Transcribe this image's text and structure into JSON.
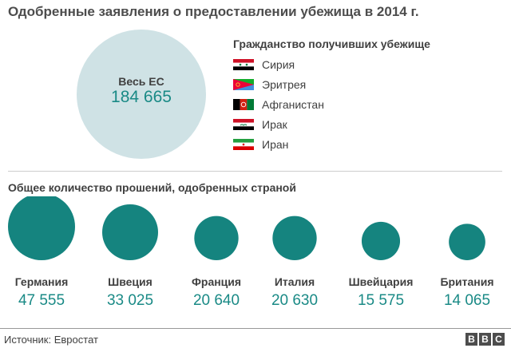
{
  "title": "Одобренные заявления о предоставлении убежища в 2014 г.",
  "eu_total": {
    "label": "Весь ЕС",
    "value": "184 665"
  },
  "legend": {
    "title": "Гражданство получивших убежище",
    "countries": [
      {
        "name": "Сирия",
        "flag": "syria-flag-icon"
      },
      {
        "name": "Эритрея",
        "flag": "eritrea-flag-icon"
      },
      {
        "name": "Афганистан",
        "flag": "afghanistan-flag-icon"
      },
      {
        "name": "Ирак",
        "flag": "iraq-flag-icon"
      },
      {
        "name": "Иран",
        "flag": "iran-flag-icon"
      }
    ]
  },
  "section_title": "Общее количество прошений, одобренных страной",
  "chart_data": {
    "type": "bubble",
    "title": "Общее количество прошений, одобренных страной",
    "categories": [
      "Германия",
      "Швеция",
      "Франция",
      "Италия",
      "Швейцария",
      "Британия"
    ],
    "values": [
      47555,
      33025,
      20640,
      20630,
      15575,
      14065
    ],
    "labels": [
      "47 555",
      "33 025",
      "20 640",
      "20 630",
      "15 575",
      "14 065"
    ],
    "total": {
      "label": "Весь ЕС",
      "value": 184665
    },
    "colors": {
      "bubble": "#15847f",
      "total_bubble": "#cfe2e5",
      "value_text": "#1a8a86"
    }
  },
  "footer": {
    "source": "Источник: Евростат",
    "logo": [
      "B",
      "B",
      "C"
    ]
  }
}
